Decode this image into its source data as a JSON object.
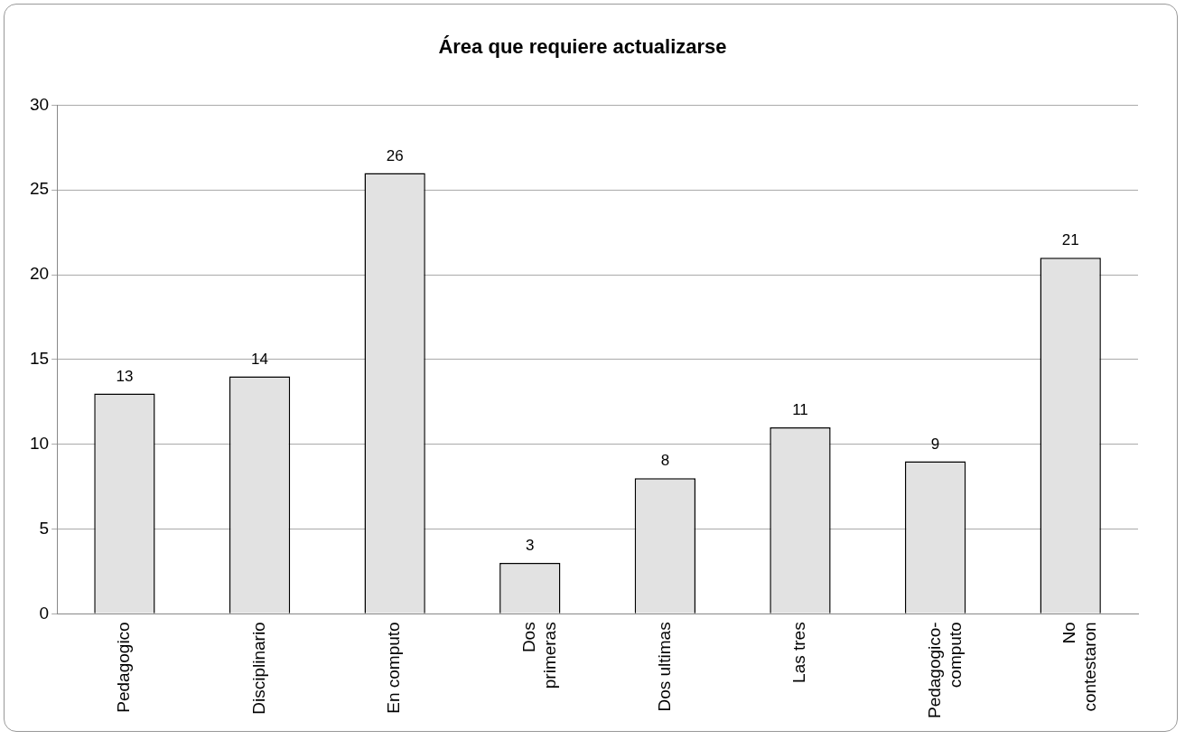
{
  "chart_data": {
    "type": "bar",
    "title": "Área que requiere actualizarse",
    "categories": [
      "Pedagogico",
      "Disciplinario",
      "En computo",
      "Dos primeras",
      "Dos ultimas",
      "Las tres",
      "Pedagogico-computo",
      "No contestaron"
    ],
    "values": [
      13,
      14,
      26,
      3,
      8,
      11,
      9,
      21
    ],
    "color": "#e2e2e2",
    "ylim": [
      0,
      30
    ],
    "yticks": [
      0,
      5,
      10,
      15,
      20,
      25,
      30
    ],
    "grid": "y",
    "data_labels": true,
    "legend": false
  }
}
